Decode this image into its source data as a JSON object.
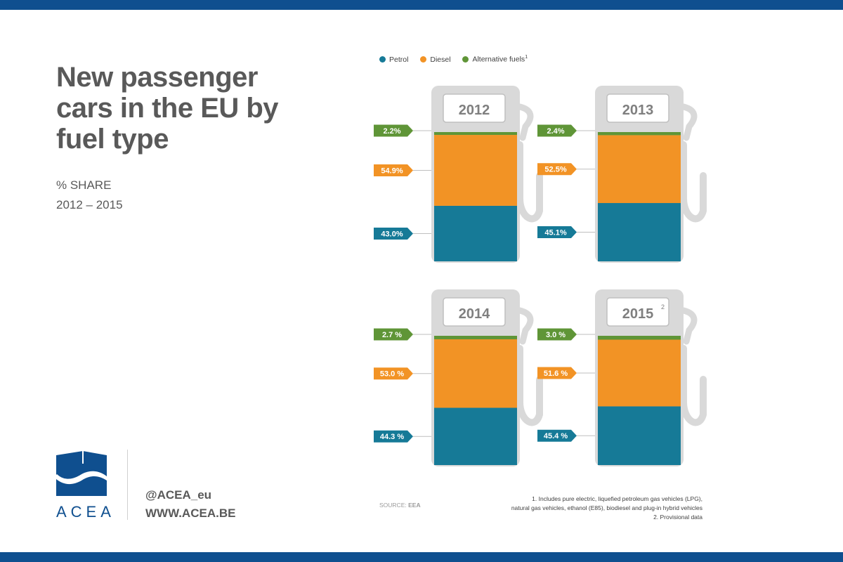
{
  "title": "New passenger cars in the EU by fuel type",
  "subtitle_line1": "% SHARE",
  "subtitle_line2": "2012 – 2015",
  "brand": {
    "logo_text": "ACEA",
    "handle": "@ACEA_eu",
    "website": "WWW.ACEA.BE"
  },
  "legend": {
    "petrol": "Petrol",
    "diesel": "Diesel",
    "alternative": "Alternative fuels",
    "alternative_note": "1"
  },
  "colors": {
    "petrol": "#167a97",
    "diesel": "#f29325",
    "alternative": "#5f9537",
    "pump": "#d9d9d9",
    "brand": "#0f4f8f"
  },
  "chart_data": {
    "type": "bar",
    "stacked": true,
    "categories": [
      "2012",
      "2013",
      "2014",
      "2015"
    ],
    "category_notes": [
      "",
      "",
      "",
      "2"
    ],
    "series": [
      {
        "name": "Petrol",
        "values": [
          43.0,
          45.1,
          44.3,
          45.4
        ],
        "labels": [
          "43.0%",
          "45.1%",
          "44.3 %",
          "45.4 %"
        ]
      },
      {
        "name": "Diesel",
        "values": [
          54.9,
          52.5,
          53.0,
          51.6
        ],
        "labels": [
          "54.9%",
          "52.5%",
          "53.0 %",
          "51.6 %"
        ]
      },
      {
        "name": "Alternative fuels",
        "values": [
          2.2,
          2.4,
          2.7,
          3.0
        ],
        "labels": [
          "2.2%",
          "2.4%",
          "2.7 %",
          "3.0 %"
        ]
      }
    ],
    "ylim": [
      0,
      100
    ]
  },
  "source_label": "SOURCE:",
  "source_value": "EEA",
  "footnotes": [
    "1. Includes pure electric, liquefied petroleum gas vehicles (LPG),",
    "natural gas vehicles, ethanol (E85), biodiesel and plug-in hybrid vehicles",
    "2. Provisional data"
  ]
}
